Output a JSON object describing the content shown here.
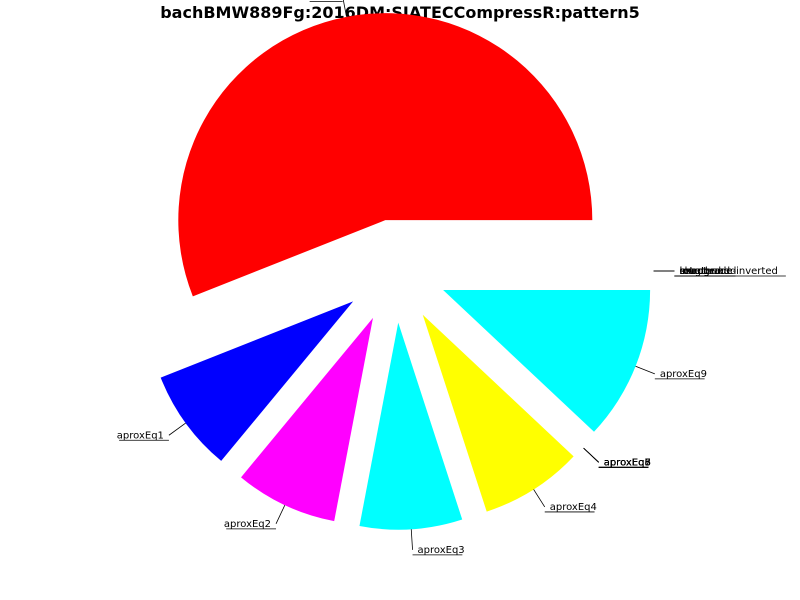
{
  "chart_data": {
    "type": "pie",
    "title": "bachBMW889Fg:2016DM:SIATECCompressR:pattern5",
    "slices": [
      {
        "label": "other",
        "value": 56.0,
        "color": "#ff0000"
      },
      {
        "label": "aproxEq1",
        "value": 8.0,
        "color": "#0000ff"
      },
      {
        "label": "aproxEq2",
        "value": 8.0,
        "color": "#ff00ff"
      },
      {
        "label": "aproxEq3",
        "value": 8.0,
        "color": "#00ffff"
      },
      {
        "label": "aproxEq4",
        "value": 8.0,
        "color": "#ffff00"
      },
      {
        "label": "aproxEq5",
        "value": 0,
        "color": "#ff0000"
      },
      {
        "label": "aproxEq6",
        "value": 0,
        "color": "#0000ff"
      },
      {
        "label": "aproxEq7",
        "value": 0,
        "color": "#ff00ff"
      },
      {
        "label": "aproxEq8",
        "value": 0,
        "color": "#00ffff"
      },
      {
        "label": "aproxEq9",
        "value": 12.0,
        "color": "#00ffff"
      },
      {
        "label": "lengthened",
        "value": 0,
        "color": "#ffff00"
      },
      {
        "label": "shortened",
        "value": 0,
        "color": "#ff0000"
      },
      {
        "label": "exact",
        "value": 0,
        "color": "#0000ff"
      },
      {
        "label": "inverted",
        "value": 0,
        "color": "#ff00ff"
      },
      {
        "label": "retrograde",
        "value": 0,
        "color": "#00ffff"
      },
      {
        "label": "retrograde-inverted",
        "value": 0,
        "color": "#ffff00"
      }
    ]
  }
}
